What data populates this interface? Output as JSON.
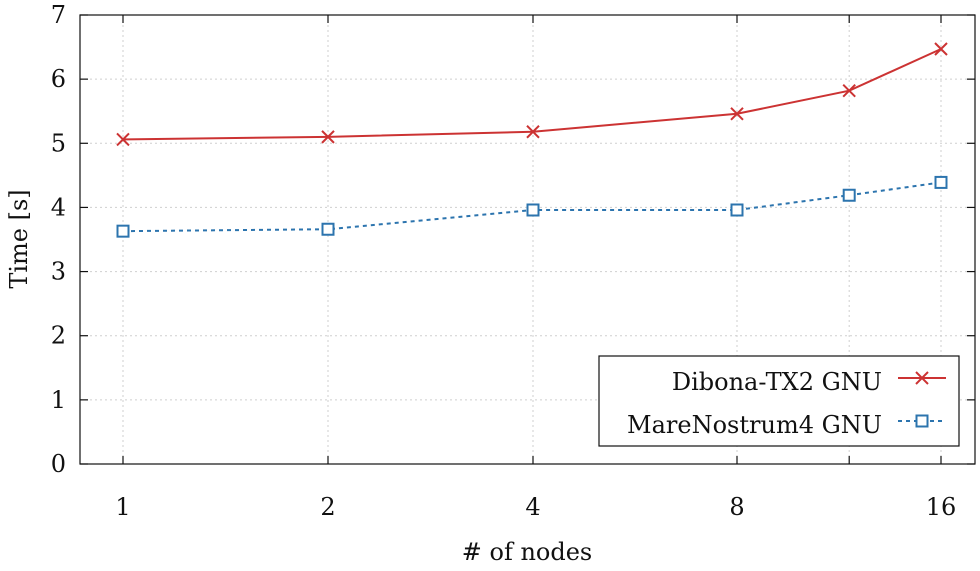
{
  "chart_data": {
    "type": "line",
    "title": "",
    "xlabel": "# of nodes",
    "ylabel": "Time [s]",
    "categories": [
      "1",
      "2",
      "4",
      "8",
      "16"
    ],
    "x": [
      1,
      2,
      3,
      4,
      4.55,
      5
    ],
    "ylim": [
      0,
      7
    ],
    "yticks": [
      0,
      1,
      2,
      3,
      4,
      5,
      6,
      7
    ],
    "grid": true,
    "legend_position": "bottom-right",
    "series": [
      {
        "name": "Dibona-TX2 GNU",
        "color": "#cc3333",
        "marker": "cross",
        "line_style": "solid",
        "values": [
          5.06,
          5.1,
          5.18,
          5.46,
          5.82,
          6.47
        ]
      },
      {
        "name": "MareNostrum4 GNU",
        "color": "#2c74ae",
        "marker": "square",
        "line_style": "dashed",
        "values": [
          3.63,
          3.66,
          3.96,
          3.96,
          4.19,
          4.39
        ]
      }
    ]
  }
}
